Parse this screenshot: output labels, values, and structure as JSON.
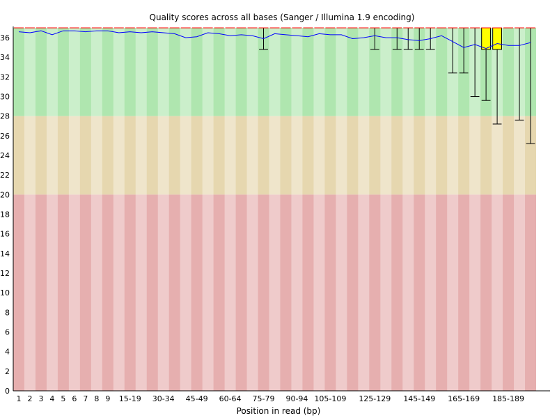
{
  "chart_data": {
    "type": "box",
    "title": "Quality scores across all bases (Sanger / Illumina 1.9 encoding)",
    "xlabel": "Position in read (bp)",
    "ylabel": "",
    "ylim": [
      0,
      37
    ],
    "yticks": [
      0,
      2,
      4,
      6,
      8,
      10,
      12,
      14,
      16,
      18,
      20,
      22,
      24,
      26,
      28,
      30,
      32,
      34,
      36
    ],
    "bands": [
      {
        "range": [
          28,
          37
        ],
        "color": "#afe6af"
      },
      {
        "range": [
          20,
          28
        ],
        "color": "#e6d7af"
      },
      {
        "range": [
          0,
          20
        ],
        "color": "#e6afaf"
      }
    ],
    "categories": [
      "1",
      "2",
      "3",
      "4",
      "5",
      "6",
      "7",
      "8",
      "9",
      "10-14",
      "15-19",
      "20-24",
      "25-29",
      "30-34",
      "35-39",
      "40-44",
      "45-49",
      "50-54",
      "55-59",
      "60-64",
      "65-69",
      "70-74",
      "75-79",
      "80-84",
      "85-89",
      "90-94",
      "95-99",
      "100-104",
      "105-109",
      "110-114",
      "115-119",
      "120-124",
      "125-129",
      "130-134",
      "135-139",
      "140-144",
      "145-149",
      "150-154",
      "155-159",
      "160-164",
      "165-169",
      "170-174",
      "175-179",
      "180-184",
      "185-189",
      "190-194",
      "195-199"
    ],
    "x_tick_labels": [
      "1",
      "2",
      "3",
      "4",
      "5",
      "6",
      "7",
      "8",
      "9",
      "15-19",
      "30-34",
      "45-49",
      "60-64",
      "75-79",
      "90-94",
      "105-109",
      "125-129",
      "145-149",
      "165-169",
      "185-189"
    ],
    "mean": [
      36.6,
      36.5,
      36.7,
      36.3,
      36.7,
      36.7,
      36.6,
      36.7,
      36.7,
      36.5,
      36.6,
      36.5,
      36.6,
      36.5,
      36.4,
      36.0,
      36.1,
      36.5,
      36.4,
      36.2,
      36.3,
      36.2,
      35.9,
      36.4,
      36.3,
      36.2,
      36.1,
      36.4,
      36.3,
      36.3,
      35.9,
      36.0,
      36.2,
      36.0,
      36.0,
      35.8,
      35.7,
      35.9,
      36.2,
      35.6,
      35.0,
      35.3,
      34.9,
      35.4,
      35.2,
      35.2,
      35.5
    ],
    "box_upper": [
      37,
      37,
      37,
      37,
      37,
      37,
      37,
      37,
      37,
      37,
      37,
      37,
      37,
      37,
      37,
      37,
      37,
      37,
      37,
      37,
      37,
      37,
      37,
      37,
      37,
      37,
      37,
      37,
      37,
      37,
      37,
      37,
      37,
      37,
      37,
      37,
      37,
      37,
      37,
      37,
      37,
      37,
      37,
      37,
      37,
      37,
      37
    ],
    "box_lower": [
      37,
      37,
      37,
      37,
      37,
      37,
      37,
      37,
      37,
      37,
      37,
      37,
      37,
      37,
      37,
      37,
      37,
      37,
      37,
      37,
      37,
      37,
      37,
      37,
      37,
      37,
      37,
      37,
      37,
      37,
      37,
      37,
      37,
      37,
      37,
      37,
      37,
      37,
      37,
      37,
      37,
      37,
      34.8,
      34.8,
      37,
      37,
      37
    ],
    "whisker_low": [
      37,
      37,
      37,
      37,
      37,
      37,
      37,
      37,
      37,
      37,
      37,
      37,
      37,
      37,
      37,
      37,
      37,
      37,
      37,
      37,
      37,
      37,
      34.8,
      37,
      37,
      37,
      37,
      37,
      37,
      37,
      37,
      37,
      34.8,
      37,
      34.8,
      34.8,
      34.8,
      34.8,
      37,
      32.4,
      32.4,
      30.0,
      29.6,
      27.2,
      37,
      27.6,
      25.2
    ],
    "median": [
      37,
      37,
      37,
      37,
      37,
      37,
      37,
      37,
      37,
      37,
      37,
      37,
      37,
      37,
      37,
      37,
      37,
      37,
      37,
      37,
      37,
      37,
      37,
      37,
      37,
      37,
      37,
      37,
      37,
      37,
      37,
      37,
      37,
      37,
      37,
      37,
      37,
      37,
      37,
      37,
      37,
      37,
      37,
      37,
      37,
      37,
      37
    ],
    "colors": {
      "box": "#ffff00",
      "mean_line": "#0000ff",
      "median": "#ff0000",
      "whisker": "#000000"
    }
  }
}
